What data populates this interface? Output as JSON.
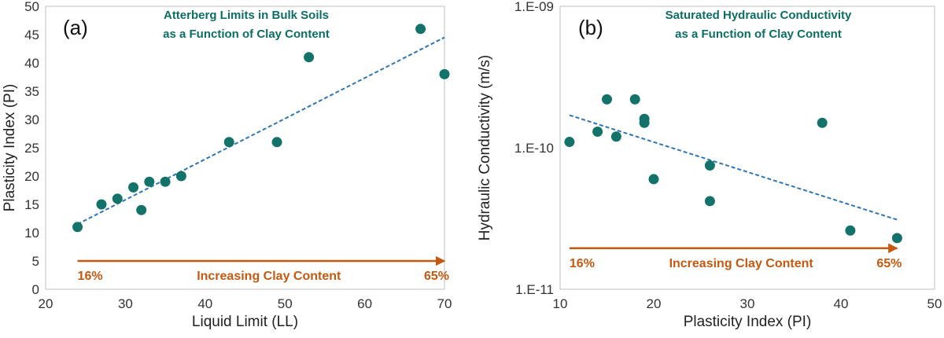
{
  "chart_data": [
    {
      "type": "scatter",
      "panel_label": "(a)",
      "title_lines": [
        "Atterberg Limits in Bulk Soils",
        "as a Function of Clay Content"
      ],
      "xlabel": "Liquid Limit (LL)",
      "ylabel": "Plasticity Index (PI)",
      "xlim": [
        20,
        70
      ],
      "ylim": [
        0,
        50
      ],
      "xticks": [
        20,
        30,
        40,
        50,
        60,
        70
      ],
      "yticks": [
        0,
        5,
        10,
        15,
        20,
        25,
        30,
        35,
        40,
        45,
        50
      ],
      "yscale": "linear",
      "points": [
        {
          "x": 24,
          "y": 11
        },
        {
          "x": 27,
          "y": 15
        },
        {
          "x": 29,
          "y": 16
        },
        {
          "x": 31,
          "y": 18
        },
        {
          "x": 32,
          "y": 14
        },
        {
          "x": 33,
          "y": 19
        },
        {
          "x": 35,
          "y": 19
        },
        {
          "x": 37,
          "y": 20
        },
        {
          "x": 43,
          "y": 26
        },
        {
          "x": 49,
          "y": 26
        },
        {
          "x": 53,
          "y": 41
        },
        {
          "x": 67,
          "y": 46
        },
        {
          "x": 70,
          "y": 38
        }
      ],
      "trendline": {
        "x": [
          24,
          70
        ],
        "y": [
          11.5,
          44.5
        ],
        "style": "dashed"
      },
      "arrow": {
        "x_start": 24,
        "x_end": 70,
        "y": 5
      },
      "annotations": {
        "left": "16%",
        "middle": "Increasing Clay Content",
        "right": "65%"
      },
      "colors": {
        "marker": "#13736a",
        "trendline": "#2e75b6",
        "arrow": "#c45911"
      }
    },
    {
      "type": "scatter",
      "panel_label": "(b)",
      "title_lines": [
        "Saturated Hydraulic Conductivity",
        "as a Function of Clay Content"
      ],
      "xlabel": "Plasticity Index (PI)",
      "ylabel": "Hydraulic Conductivity (m/s)",
      "xlim": [
        10,
        50
      ],
      "ylim": [
        1e-11,
        1e-09
      ],
      "xticks": [
        10,
        20,
        30,
        40,
        50
      ],
      "yticks": [
        1e-11,
        1e-10,
        1e-09
      ],
      "ytick_labels": [
        "1.E-11",
        "1.E-10",
        "1.E-09"
      ],
      "yscale": "log",
      "points": [
        {
          "x": 11,
          "y": 1.1e-10
        },
        {
          "x": 14,
          "y": 1.3e-10
        },
        {
          "x": 15,
          "y": 2.2e-10
        },
        {
          "x": 16,
          "y": 1.2e-10
        },
        {
          "x": 18,
          "y": 2.2e-10
        },
        {
          "x": 19,
          "y": 1.6e-10
        },
        {
          "x": 19,
          "y": 1.5e-10
        },
        {
          "x": 20,
          "y": 6e-11
        },
        {
          "x": 26,
          "y": 7.5e-11
        },
        {
          "x": 26,
          "y": 4.2e-11
        },
        {
          "x": 38,
          "y": 1.5e-10
        },
        {
          "x": 41,
          "y": 2.6e-11
        },
        {
          "x": 46,
          "y": 2.3e-11
        }
      ],
      "trendline": {
        "x": [
          11,
          46
        ],
        "y": [
          1.7e-10,
          3.1e-11
        ],
        "style": "dashed"
      },
      "arrow": {
        "x_start": 11,
        "x_end": 46,
        "y": 1.95e-11
      },
      "annotations": {
        "left": "16%",
        "middle": "Increasing Clay Content",
        "right": "65%"
      },
      "colors": {
        "marker": "#13736a",
        "trendline": "#2e75b6",
        "arrow": "#c45911"
      }
    }
  ]
}
